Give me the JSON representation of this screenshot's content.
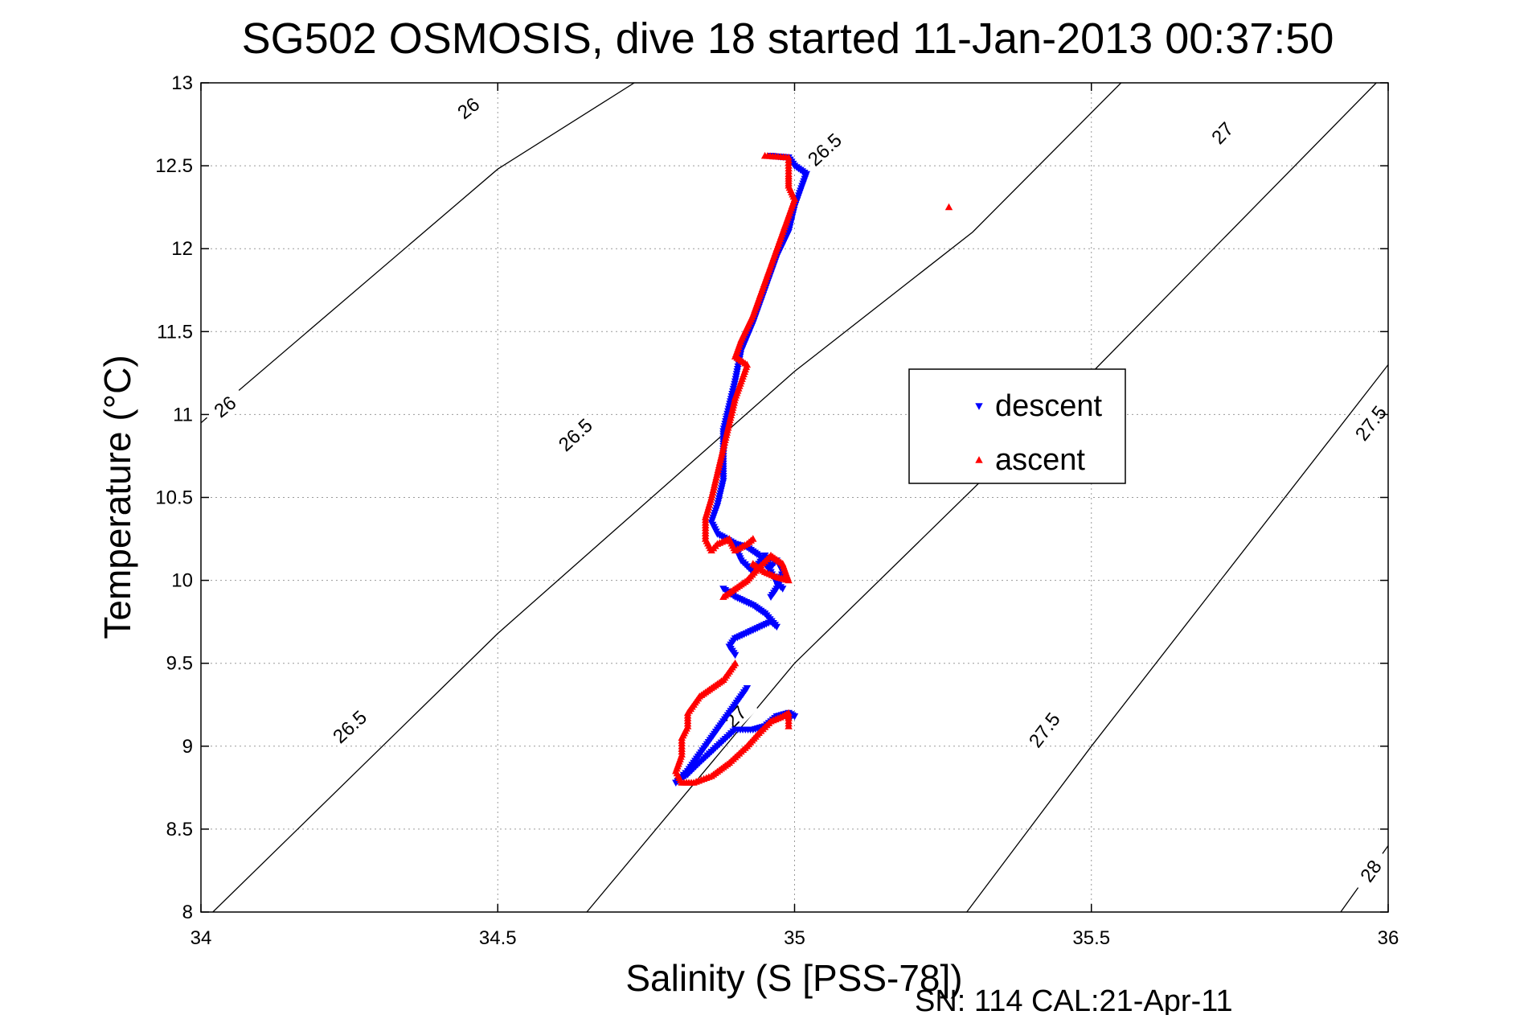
{
  "chart_data": {
    "type": "scatter",
    "title": "SG502 OSMOSIS, dive 18 started 11-Jan-2013 00:37:50",
    "xlabel": "Salinity (S [PSS-78])",
    "ylabel": "Temperature (°C)",
    "footer": "SN: 114  CAL:21-Apr-11",
    "xlim": [
      34,
      36
    ],
    "ylim": [
      8,
      13
    ],
    "xticks": [
      34,
      34.5,
      35,
      35.5,
      36
    ],
    "xtick_labels": [
      "34",
      "34.5",
      "35",
      "35.5",
      "36"
    ],
    "yticks": [
      8,
      8.5,
      9,
      9.5,
      10,
      10.5,
      11,
      11.5,
      12,
      12.5,
      13
    ],
    "ytick_labels": [
      "8",
      "8.5",
      "9",
      "9.5",
      "10",
      "10.5",
      "11",
      "11.5",
      "12",
      "12.5",
      "13"
    ],
    "grid": true,
    "legend_position": "center-right",
    "isopycnals": [
      {
        "label": "26",
        "points": [
          [
            34.0,
            10.95
          ],
          [
            34.5,
            12.48
          ],
          [
            34.73,
            13.0
          ]
        ],
        "label_at": [
          [
            34.45,
            12.85
          ],
          [
            34.04,
            11.05
          ]
        ]
      },
      {
        "label": "26.5",
        "points": [
          [
            34.02,
            8.0
          ],
          [
            34.5,
            9.68
          ],
          [
            35.0,
            11.26
          ],
          [
            35.3,
            12.1
          ],
          [
            35.55,
            13.0
          ]
        ],
        "label_at": [
          [
            34.25,
            9.12
          ],
          [
            34.63,
            10.88
          ],
          [
            35.05,
            12.6
          ]
        ]
      },
      {
        "label": "27",
        "points": [
          [
            34.65,
            8.0
          ],
          [
            35.0,
            9.5
          ],
          [
            35.5,
            11.25
          ],
          [
            35.98,
            13.0
          ]
        ],
        "label_at": [
          [
            34.9,
            9.18
          ],
          [
            35.72,
            12.7
          ]
        ]
      },
      {
        "label": "27.5",
        "points": [
          [
            35.29,
            8.0
          ],
          [
            35.5,
            9.0
          ],
          [
            36.0,
            11.3
          ]
        ],
        "label_at": [
          [
            35.42,
            9.1
          ],
          [
            35.97,
            10.95
          ]
        ]
      },
      {
        "label": "28",
        "points": [
          [
            35.92,
            8.0
          ],
          [
            36.0,
            8.4
          ]
        ],
        "label_at": [
          [
            35.97,
            8.25
          ]
        ]
      }
    ],
    "series": [
      {
        "name": "descent",
        "color": "#0000ff",
        "marker": "triangle-down",
        "segments": [
          [
            [
              34.96,
              12.56
            ],
            [
              34.99,
              12.55
            ],
            [
              35.0,
              12.5
            ],
            [
              35.02,
              12.45
            ],
            [
              35.01,
              12.35
            ],
            [
              35.0,
              12.25
            ],
            [
              34.99,
              12.1
            ],
            [
              34.97,
              11.95
            ],
            [
              34.95,
              11.75
            ],
            [
              34.93,
              11.55
            ],
            [
              34.91,
              11.38
            ],
            [
              34.9,
              11.2
            ],
            [
              34.89,
              11.05
            ],
            [
              34.88,
              10.9
            ],
            [
              34.88,
              10.75
            ],
            [
              34.88,
              10.6
            ],
            [
              34.87,
              10.45
            ],
            [
              34.86,
              10.35
            ],
            [
              34.87,
              10.28
            ],
            [
              34.9,
              10.22
            ],
            [
              34.92,
              10.2
            ],
            [
              34.94,
              10.15
            ],
            [
              34.95,
              10.1
            ],
            [
              34.96,
              10.05
            ],
            [
              34.97,
              9.98
            ],
            [
              34.98,
              9.95
            ]
          ],
          [
            [
              34.9,
              10.2
            ],
            [
              34.91,
              10.12
            ],
            [
              34.93,
              10.05
            ],
            [
              34.95,
              10.15
            ],
            [
              34.96,
              10.08
            ],
            [
              34.97,
              10.12
            ],
            [
              34.98,
              10.05
            ],
            [
              34.97,
              9.95
            ],
            [
              34.96,
              9.9
            ]
          ],
          [
            [
              34.88,
              9.95
            ],
            [
              34.9,
              9.9
            ],
            [
              34.93,
              9.85
            ],
            [
              34.95,
              9.8
            ],
            [
              34.97,
              9.72
            ],
            [
              34.96,
              9.75
            ],
            [
              34.93,
              9.7
            ],
            [
              34.9,
              9.65
            ],
            [
              34.89,
              9.6
            ],
            [
              34.9,
              9.55
            ]
          ],
          [
            [
              34.99,
              9.2
            ],
            [
              34.97,
              9.18
            ],
            [
              34.95,
              9.12
            ],
            [
              34.93,
              9.1
            ],
            [
              34.9,
              9.1
            ],
            [
              34.87,
              9.0
            ],
            [
              34.84,
              8.9
            ],
            [
              34.82,
              8.83
            ],
            [
              34.8,
              8.78
            ],
            [
              34.82,
              8.85
            ],
            [
              34.84,
              8.95
            ],
            [
              34.86,
              9.05
            ],
            [
              34.88,
              9.15
            ],
            [
              34.9,
              9.25
            ],
            [
              34.92,
              9.35
            ]
          ],
          [
            [
              34.99,
              9.15
            ],
            [
              34.99,
              9.2
            ],
            [
              35.0,
              9.18
            ]
          ]
        ]
      },
      {
        "name": "ascent",
        "color": "#ff0000",
        "marker": "triangle-up",
        "segments": [
          [
            [
              34.95,
              12.56
            ],
            [
              34.99,
              12.55
            ],
            [
              34.99,
              12.45
            ],
            [
              34.99,
              12.38
            ],
            [
              35.0,
              12.3
            ],
            [
              34.99,
              12.2
            ],
            [
              34.97,
              12.0
            ],
            [
              34.95,
              11.8
            ],
            [
              34.93,
              11.6
            ],
            [
              34.91,
              11.45
            ],
            [
              34.9,
              11.35
            ],
            [
              34.92,
              11.3
            ],
            [
              34.91,
              11.2
            ],
            [
              34.9,
              11.1
            ],
            [
              34.89,
              10.95
            ],
            [
              34.88,
              10.8
            ],
            [
              34.87,
              10.65
            ],
            [
              34.86,
              10.5
            ],
            [
              34.85,
              10.38
            ],
            [
              34.85,
              10.25
            ],
            [
              34.86,
              10.18
            ],
            [
              34.87,
              10.22
            ],
            [
              34.89,
              10.25
            ],
            [
              34.9,
              10.18
            ],
            [
              34.92,
              10.22
            ],
            [
              34.93,
              10.25
            ]
          ],
          [
            [
              34.93,
              10.1
            ],
            [
              34.95,
              10.05
            ],
            [
              34.97,
              10.02
            ],
            [
              34.99,
              10.0
            ],
            [
              34.98,
              10.1
            ],
            [
              34.96,
              10.15
            ],
            [
              34.94,
              10.08
            ],
            [
              34.92,
              10.0
            ],
            [
              34.9,
              9.95
            ],
            [
              34.88,
              9.9
            ]
          ],
          [
            [
              34.9,
              9.5
            ],
            [
              34.89,
              9.45
            ],
            [
              34.88,
              9.4
            ],
            [
              34.86,
              9.35
            ],
            [
              34.84,
              9.3
            ],
            [
              34.83,
              9.25
            ],
            [
              34.82,
              9.2
            ],
            [
              34.82,
              9.12
            ],
            [
              34.81,
              9.05
            ],
            [
              34.81,
              8.95
            ],
            [
              34.8,
              8.85
            ],
            [
              34.81,
              8.78
            ],
            [
              34.83,
              8.78
            ],
            [
              34.86,
              8.82
            ],
            [
              34.89,
              8.9
            ],
            [
              34.92,
              9.0
            ],
            [
              34.94,
              9.08
            ],
            [
              34.96,
              9.15
            ],
            [
              34.98,
              9.18
            ],
            [
              34.99,
              9.2
            ],
            [
              34.99,
              9.12
            ]
          ],
          [
            [
              35.26,
              12.25
            ]
          ]
        ]
      }
    ]
  }
}
